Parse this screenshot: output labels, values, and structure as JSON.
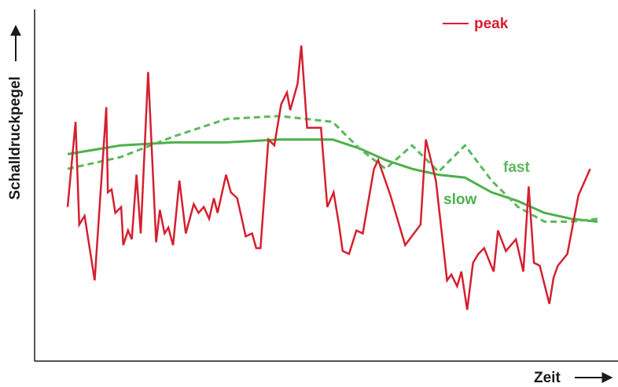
{
  "chart_data": {
    "type": "line",
    "xlabel": "Zeit",
    "ylabel": "Schalldruckpegel",
    "grid": false,
    "xlim": [
      0,
      100
    ],
    "ylim": [
      0,
      100
    ],
    "colors": {
      "peak": "#d42030",
      "fast": "#5cb85c",
      "slow": "#4cb04c",
      "axis": "#1a1a1a"
    },
    "series": [
      {
        "name": "peak",
        "style": "solid",
        "x": [
          0,
          1.5,
          2.2,
          3.2,
          5.1,
          7.3,
          7.6,
          8.3,
          9.0,
          10.1,
          10.5,
          11.4,
          12.1,
          13.0,
          13.8,
          15.2,
          16.7,
          17.4,
          18.3,
          19.0,
          19.9,
          21.1,
          22.3,
          23.8,
          24.7,
          25.7,
          26.7,
          27.6,
          28.3,
          29.9,
          30.8,
          32.0,
          33.0,
          33.6,
          34.8,
          35.6,
          36.4,
          37.9,
          39.0,
          40.3,
          41.4,
          42.0,
          43.4,
          44.1,
          45.2,
          47.8,
          49.0,
          50.2,
          51.2,
          51.9,
          53.1,
          54.5,
          55.7,
          57.8,
          58.6,
          60.9,
          63.7,
          66.6,
          67.6,
          69.5,
          71.6,
          72.4,
          73.5,
          74.3,
          75.4,
          76.5,
          77.5,
          78.6,
          79.7,
          80.4,
          81.2,
          82.7,
          84.6,
          86.0,
          87.0,
          88.0,
          89.1,
          90.9,
          91.7,
          92.5,
          94.3,
          96.4,
          98.6
        ],
        "y": [
          45,
          74,
          39,
          42,
          20,
          79,
          50,
          51,
          43,
          45,
          32,
          37,
          34,
          56,
          36,
          91,
          33,
          44,
          36,
          38,
          32,
          54,
          36,
          46,
          43,
          45,
          41,
          48,
          43,
          56,
          50,
          48,
          40,
          35,
          36,
          31,
          31,
          68,
          66,
          80,
          84,
          78,
          87,
          100,
          72,
          72,
          45,
          50,
          39,
          30,
          29,
          37,
          36,
          58,
          61,
          49,
          32,
          39,
          68,
          54,
          20,
          22,
          18,
          23,
          10,
          26,
          29,
          31,
          26,
          23,
          37,
          30,
          34,
          23,
          52,
          26,
          25,
          12,
          21,
          25,
          29,
          49,
          58
        ]
      },
      {
        "name": "fast",
        "style": "dashed",
        "x": [
          0,
          10,
          20,
          30,
          40,
          50,
          55,
          60,
          65,
          70,
          75,
          80,
          85,
          90,
          95,
          100
        ],
        "y": [
          58,
          62,
          69,
          75,
          76,
          74,
          65,
          58,
          66,
          57,
          66,
          54,
          45,
          40,
          40,
          41
        ]
      },
      {
        "name": "slow",
        "style": "solid",
        "x": [
          0,
          10,
          20,
          30,
          40,
          50,
          55,
          60,
          65,
          70,
          75,
          80,
          85,
          90,
          95,
          100
        ],
        "y": [
          63,
          66,
          67,
          67,
          68,
          68,
          65,
          61,
          58,
          56,
          55,
          50,
          47,
          43,
          41,
          40
        ]
      }
    ]
  }
}
